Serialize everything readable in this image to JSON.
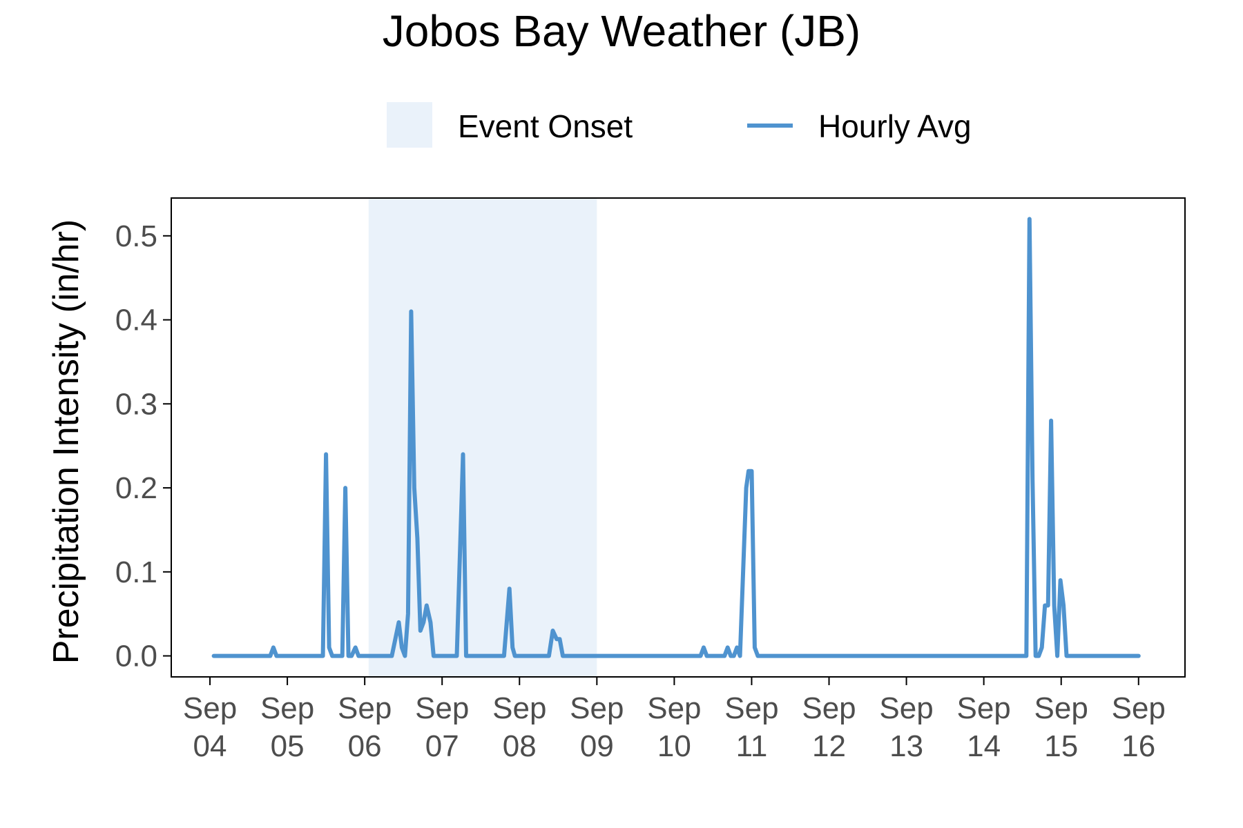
{
  "chart_data": {
    "type": "line",
    "title": "Jobos Bay Weather (JB)",
    "ylabel": "Precipitation Intensity (in/hr)",
    "xlabel": "",
    "ylim": [
      -0.025,
      0.545
    ],
    "xlim_days": [
      3.5,
      16.6
    ],
    "grid": false,
    "legend_position": "top",
    "colors": {
      "line": "#4f93cf",
      "band": "#eaf2fa",
      "axis": "#000000",
      "tick_label": "#4d4d4d"
    },
    "yticks": [
      {
        "value": 0.0,
        "label": "0.0"
      },
      {
        "value": 0.1,
        "label": "0.1"
      },
      {
        "value": 0.2,
        "label": "0.2"
      },
      {
        "value": 0.3,
        "label": "0.3"
      },
      {
        "value": 0.4,
        "label": "0.4"
      },
      {
        "value": 0.5,
        "label": "0.5"
      }
    ],
    "xticks": [
      {
        "day": 4,
        "line1": "Sep",
        "line2": "04"
      },
      {
        "day": 5,
        "line1": "Sep",
        "line2": "05"
      },
      {
        "day": 6,
        "line1": "Sep",
        "line2": "06"
      },
      {
        "day": 7,
        "line1": "Sep",
        "line2": "07"
      },
      {
        "day": 8,
        "line1": "Sep",
        "line2": "08"
      },
      {
        "day": 9,
        "line1": "Sep",
        "line2": "09"
      },
      {
        "day": 10,
        "line1": "Sep",
        "line2": "10"
      },
      {
        "day": 11,
        "line1": "Sep",
        "line2": "11"
      },
      {
        "day": 12,
        "line1": "Sep",
        "line2": "12"
      },
      {
        "day": 13,
        "line1": "Sep",
        "line2": "13"
      },
      {
        "day": 14,
        "line1": "Sep",
        "line2": "14"
      },
      {
        "day": 15,
        "line1": "Sep",
        "line2": "15"
      },
      {
        "day": 16,
        "line1": "Sep",
        "line2": "16"
      }
    ],
    "event_band": {
      "name": "Event Onset",
      "start_day": 6.05,
      "end_day": 9.0
    },
    "series": [
      {
        "name": "Hourly Avg",
        "x": [
          4.05,
          4.78,
          4.82,
          4.86,
          5.46,
          5.5,
          5.54,
          5.58,
          5.63,
          5.71,
          5.75,
          5.79,
          5.83,
          5.88,
          5.92,
          5.96,
          6.35,
          6.44,
          6.48,
          6.52,
          6.56,
          6.6,
          6.64,
          6.68,
          6.72,
          6.76,
          6.8,
          6.85,
          6.89,
          6.93,
          7.19,
          7.27,
          7.31,
          7.35,
          7.8,
          7.87,
          7.91,
          7.94,
          8.38,
          8.43,
          8.48,
          8.52,
          8.56,
          10.34,
          10.38,
          10.42,
          10.65,
          10.69,
          10.73,
          10.77,
          10.81,
          10.85,
          10.93,
          10.96,
          11.0,
          11.04,
          11.08,
          14.55,
          14.59,
          14.63,
          14.67,
          14.71,
          14.75,
          14.79,
          14.83,
          14.87,
          14.91,
          14.95,
          14.99,
          15.03,
          15.07,
          15.11,
          16.0
        ],
        "y": [
          0.0,
          0.0,
          0.01,
          0.0,
          0.0,
          0.24,
          0.01,
          0.0,
          0.0,
          0.0,
          0.2,
          0.0,
          0.0,
          0.01,
          0.0,
          0.0,
          0.0,
          0.04,
          0.01,
          0.0,
          0.05,
          0.41,
          0.2,
          0.14,
          0.03,
          0.04,
          0.06,
          0.04,
          0.0,
          0.0,
          0.0,
          0.24,
          0.0,
          0.0,
          0.0,
          0.08,
          0.01,
          0.0,
          0.0,
          0.03,
          0.02,
          0.02,
          0.0,
          0.0,
          0.01,
          0.0,
          0.0,
          0.01,
          0.0,
          0.0,
          0.01,
          0.0,
          0.2,
          0.22,
          0.22,
          0.01,
          0.0,
          0.0,
          0.52,
          0.21,
          0.0,
          0.0,
          0.01,
          0.06,
          0.06,
          0.28,
          0.06,
          0.0,
          0.09,
          0.06,
          0.0,
          0.0,
          0.0
        ]
      }
    ]
  }
}
